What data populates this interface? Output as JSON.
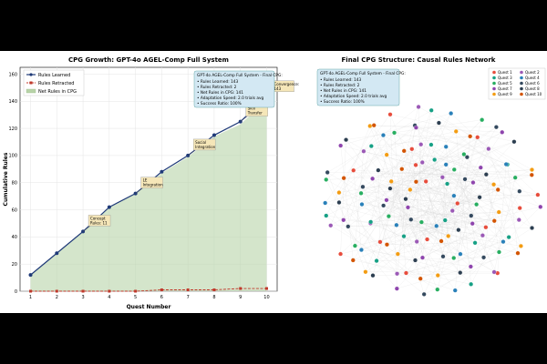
{
  "chart_data": [
    {
      "type": "area",
      "title": "CPG Growth: GPT-4o AGEL-Comp Full System",
      "xlabel": "Quest Number",
      "ylabel": "Cumulative Rules",
      "xlim": [
        0.6,
        10.4
      ],
      "ylim": [
        0,
        165
      ],
      "xticks": [
        1,
        2,
        3,
        4,
        5,
        6,
        7,
        8,
        9,
        10
      ],
      "yticks": [
        0,
        20,
        40,
        60,
        80,
        100,
        120,
        140,
        160
      ],
      "grid": true,
      "legend": "top-left",
      "x": [
        1,
        2,
        3,
        4,
        5,
        6,
        7,
        8,
        9,
        10
      ],
      "series": [
        {
          "name": "Rules Learned",
          "values": [
            12,
            28,
            44,
            62,
            72,
            88,
            100,
            115,
            125,
            143
          ],
          "color": "#1f3a78",
          "style": "solid",
          "marker": "circle"
        },
        {
          "name": "Rules Retracted",
          "values": [
            0,
            0,
            0,
            0,
            0,
            1,
            1,
            1,
            2,
            2
          ],
          "color": "#c0392b",
          "style": "dashed",
          "marker": "square"
        },
        {
          "name": "Net Rules in CPG",
          "values": [
            12,
            28,
            44,
            62,
            72,
            87,
            99,
            114,
            123,
            141
          ],
          "color": "#b7d3a8",
          "style": "fill"
        }
      ],
      "annotations": [
        {
          "text": "Concept Rules: 11",
          "x": 3,
          "y": 44
        },
        {
          "text": "LE Integration",
          "x": 5,
          "y": 72
        },
        {
          "text": "Social Integration",
          "x": 7,
          "y": 100
        },
        {
          "text": "Skill Transfer",
          "x": 9,
          "y": 125
        },
        {
          "text": "Convergence: 143",
          "x": 10,
          "y": 143
        }
      ],
      "summary_box": {
        "title": "GPT-4o AGEL-Comp Full System - Final CPG:",
        "lines": [
          "• Rules Learned: 143",
          "• Rules Retracted: 2",
          "• Net Rules in CPG: 141",
          "• Adaptation Speed: 2.0 trials avg",
          "• Success Ratio: 100%"
        ]
      }
    },
    {
      "type": "network",
      "title": "Final CPG Structure: Causal Rules Network",
      "legend": "top-right",
      "groups": [
        {
          "name": "Quest 1",
          "color": "#e74c3c"
        },
        {
          "name": "Quest 2",
          "color": "#9b59b6"
        },
        {
          "name": "Quest 3",
          "color": "#16a085"
        },
        {
          "name": "Quest 4",
          "color": "#2980b9"
        },
        {
          "name": "Quest 5",
          "color": "#27ae60"
        },
        {
          "name": "Quest 6",
          "color": "#34495e"
        },
        {
          "name": "Quest 7",
          "color": "#8e44ad"
        },
        {
          "name": "Quest 8",
          "color": "#2c3e50"
        },
        {
          "name": "Quest 9",
          "color": "#f39c12"
        },
        {
          "name": "Quest 10",
          "color": "#d35400"
        }
      ],
      "node_count": 141,
      "summary_box": {
        "title": "GPT-4o AGEL-Comp Full System - Final CPG:",
        "lines": [
          "• Rules Learned: 143",
          "• Rules Retracted: 2",
          "• Net Rules in CPG: 141",
          "• Adaptation Speed: 2.0 trials avg",
          "• Success Ratio: 100%"
        ]
      }
    }
  ]
}
